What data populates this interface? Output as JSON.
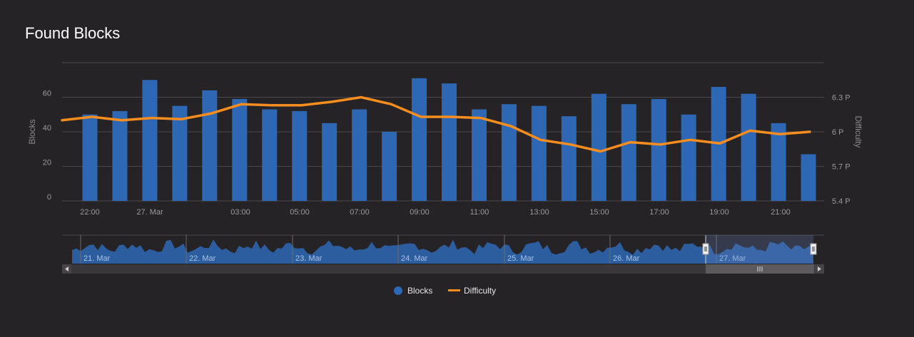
{
  "title": "Found Blocks",
  "colors": {
    "background": "#252326",
    "blocks": "#2e68b5",
    "difficulty": "#f78d1e",
    "grid": "#4a484b"
  },
  "chart_data": {
    "type": "bar",
    "title": "Found Blocks",
    "ylabel_left": "Blocks",
    "ylabel_right": "Difficulty",
    "ylim_left": [
      0,
      80
    ],
    "ylim_right": [
      "5.4 P",
      "6.6 P"
    ],
    "y_ticks_left": [
      "0",
      "20",
      "40",
      "60"
    ],
    "y_ticks_right": [
      "5.4 P",
      "5.7 P",
      "6 P",
      "6.3 P"
    ],
    "x_tick_labels": [
      "22:00",
      "27. Mar",
      "03:00",
      "05:00",
      "07:00",
      "09:00",
      "11:00",
      "13:00",
      "15:00",
      "17:00",
      "19:00",
      "21:00"
    ],
    "series": [
      {
        "name": "Blocks",
        "type": "column",
        "axis": "left",
        "values": [
          50,
          52,
          70,
          55,
          64,
          59,
          53,
          52,
          45,
          53,
          40,
          71,
          68,
          53,
          56,
          55,
          49,
          62,
          56,
          59,
          50,
          66,
          62,
          45,
          27
        ]
      },
      {
        "name": "Difficulty",
        "type": "line",
        "axis": "right",
        "unit": "P",
        "values": [
          6.1,
          6.13,
          6.1,
          6.12,
          6.11,
          6.16,
          6.24,
          6.23,
          6.23,
          6.26,
          6.3,
          6.24,
          6.13,
          6.13,
          6.12,
          6.05,
          5.93,
          5.89,
          5.83,
          5.91,
          5.89,
          5.93,
          5.9,
          6.01,
          5.98,
          6.0
        ]
      }
    ],
    "legend": {
      "position": "bottom-center",
      "items": [
        "Blocks",
        "Difficulty"
      ]
    },
    "grid": true
  },
  "navigator": {
    "labels": [
      "21. Mar",
      "22. Mar",
      "23. Mar",
      "24. Mar",
      "25. Mar",
      "26. Mar",
      "27. Mar"
    ],
    "selected_range_start": 0.848,
    "selected_range_end": 1.0
  }
}
